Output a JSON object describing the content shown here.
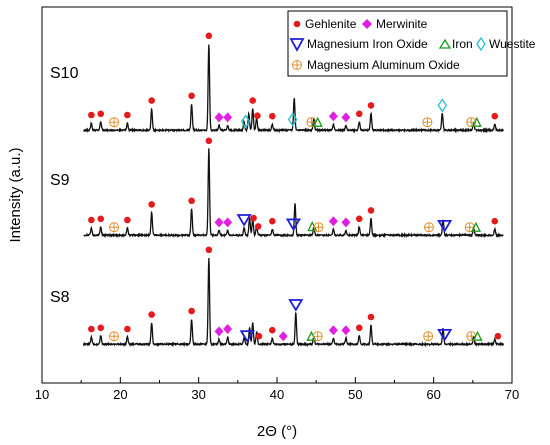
{
  "chart_data": {
    "type": "line",
    "xlabel": "2Θ (°)",
    "ylabel": "Intensity (a.u.)",
    "xlim": [
      10,
      70
    ],
    "xticks": [
      10,
      20,
      30,
      40,
      50,
      60,
      70
    ],
    "series": [
      {
        "name": "S10",
        "baseline": 0.02,
        "peaks": [
          {
            "x": 16.3,
            "h": 0.03
          },
          {
            "x": 17.5,
            "h": 0.035
          },
          {
            "x": 20.9,
            "h": 0.03
          },
          {
            "x": 24.0,
            "h": 0.09
          },
          {
            "x": 29.1,
            "h": 0.11
          },
          {
            "x": 31.3,
            "h": 0.36
          },
          {
            "x": 32.6,
            "h": 0.02
          },
          {
            "x": 33.7,
            "h": 0.02
          },
          {
            "x": 35.8,
            "h": 0.035
          },
          {
            "x": 36.4,
            "h": 0.07
          },
          {
            "x": 36.9,
            "h": 0.09
          },
          {
            "x": 37.4,
            "h": 0.05
          },
          {
            "x": 39.4,
            "h": 0.025
          },
          {
            "x": 42.2,
            "h": 0.135
          },
          {
            "x": 44.7,
            "h": 0.05
          },
          {
            "x": 47.2,
            "h": 0.025
          },
          {
            "x": 48.8,
            "h": 0.02
          },
          {
            "x": 50.5,
            "h": 0.035
          },
          {
            "x": 52.0,
            "h": 0.07
          },
          {
            "x": 61.1,
            "h": 0.07
          },
          {
            "x": 65.1,
            "h": 0.03
          },
          {
            "x": 67.8,
            "h": 0.025
          }
        ],
        "markers": [
          {
            "x": 16.3,
            "phase": "Gehlenite"
          },
          {
            "x": 17.5,
            "phase": "Gehlenite"
          },
          {
            "x": 19.2,
            "phase": "Magnesium Aluminum Oxide"
          },
          {
            "x": 20.9,
            "phase": "Gehlenite"
          },
          {
            "x": 24.0,
            "phase": "Gehlenite"
          },
          {
            "x": 29.1,
            "phase": "Gehlenite"
          },
          {
            "x": 31.3,
            "phase": "Gehlenite"
          },
          {
            "x": 32.6,
            "phase": "Merwinite"
          },
          {
            "x": 33.7,
            "phase": "Merwinite"
          },
          {
            "x": 36.0,
            "phase": "Wuestite"
          },
          {
            "x": 36.9,
            "phase": "Gehlenite"
          },
          {
            "x": 37.5,
            "phase": "Gehlenite"
          },
          {
            "x": 39.4,
            "phase": "Gehlenite"
          },
          {
            "x": 42.0,
            "phase": "Wuestite"
          },
          {
            "x": 44.4,
            "phase": "Magnesium Aluminum Oxide"
          },
          {
            "x": 45.2,
            "phase": "Iron"
          },
          {
            "x": 47.2,
            "phase": "Merwinite"
          },
          {
            "x": 48.8,
            "phase": "Merwinite"
          },
          {
            "x": 50.5,
            "phase": "Gehlenite"
          },
          {
            "x": 52.0,
            "phase": "Gehlenite"
          },
          {
            "x": 59.2,
            "phase": "Magnesium Aluminum Oxide"
          },
          {
            "x": 61.1,
            "phase": "Wuestite"
          },
          {
            "x": 64.8,
            "phase": "Magnesium Aluminum Oxide"
          },
          {
            "x": 65.5,
            "phase": "Iron"
          },
          {
            "x": 67.8,
            "phase": "Gehlenite"
          }
        ]
      },
      {
        "name": "S9",
        "baseline": 0.02,
        "peaks": [
          {
            "x": 16.3,
            "h": 0.03
          },
          {
            "x": 17.5,
            "h": 0.035
          },
          {
            "x": 20.9,
            "h": 0.03
          },
          {
            "x": 24.0,
            "h": 0.095
          },
          {
            "x": 29.1,
            "h": 0.11
          },
          {
            "x": 31.3,
            "h": 0.36
          },
          {
            "x": 32.6,
            "h": 0.02
          },
          {
            "x": 33.7,
            "h": 0.02
          },
          {
            "x": 35.8,
            "h": 0.03
          },
          {
            "x": 36.5,
            "h": 0.07
          },
          {
            "x": 36.9,
            "h": 0.07
          },
          {
            "x": 37.4,
            "h": 0.04
          },
          {
            "x": 39.4,
            "h": 0.025
          },
          {
            "x": 42.3,
            "h": 0.135
          },
          {
            "x": 44.7,
            "h": 0.035
          },
          {
            "x": 47.2,
            "h": 0.025
          },
          {
            "x": 48.8,
            "h": 0.02
          },
          {
            "x": 50.5,
            "h": 0.035
          },
          {
            "x": 52.0,
            "h": 0.07
          },
          {
            "x": 61.2,
            "h": 0.065
          },
          {
            "x": 65.1,
            "h": 0.03
          },
          {
            "x": 67.8,
            "h": 0.025
          }
        ],
        "markers": [
          {
            "x": 16.3,
            "phase": "Gehlenite"
          },
          {
            "x": 17.5,
            "phase": "Gehlenite"
          },
          {
            "x": 19.2,
            "phase": "Magnesium Aluminum Oxide"
          },
          {
            "x": 20.9,
            "phase": "Gehlenite"
          },
          {
            "x": 24.0,
            "phase": "Gehlenite"
          },
          {
            "x": 29.1,
            "phase": "Gehlenite"
          },
          {
            "x": 31.3,
            "phase": "Gehlenite"
          },
          {
            "x": 32.6,
            "phase": "Merwinite"
          },
          {
            "x": 33.7,
            "phase": "Merwinite"
          },
          {
            "x": 35.8,
            "phase": "Magnesium Iron Oxide"
          },
          {
            "x": 37.0,
            "phase": "Gehlenite"
          },
          {
            "x": 37.6,
            "phase": "Gehlenite"
          },
          {
            "x": 39.4,
            "phase": "Gehlenite"
          },
          {
            "x": 42.1,
            "phase": "Magnesium Iron Oxide"
          },
          {
            "x": 44.5,
            "phase": "Iron"
          },
          {
            "x": 45.3,
            "phase": "Magnesium Aluminum Oxide"
          },
          {
            "x": 47.2,
            "phase": "Merwinite"
          },
          {
            "x": 48.8,
            "phase": "Merwinite"
          },
          {
            "x": 50.5,
            "phase": "Gehlenite"
          },
          {
            "x": 52.0,
            "phase": "Gehlenite"
          },
          {
            "x": 59.4,
            "phase": "Magnesium Aluminum Oxide"
          },
          {
            "x": 61.4,
            "phase": "Magnesium Iron Oxide"
          },
          {
            "x": 64.6,
            "phase": "Magnesium Aluminum Oxide"
          },
          {
            "x": 65.4,
            "phase": "Iron"
          },
          {
            "x": 67.8,
            "phase": "Gehlenite"
          }
        ]
      },
      {
        "name": "S8",
        "baseline": 0.02,
        "peaks": [
          {
            "x": 16.3,
            "h": 0.03
          },
          {
            "x": 17.5,
            "h": 0.035
          },
          {
            "x": 20.9,
            "h": 0.03
          },
          {
            "x": 24.0,
            "h": 0.09
          },
          {
            "x": 29.1,
            "h": 0.105
          },
          {
            "x": 31.3,
            "h": 0.36
          },
          {
            "x": 32.6,
            "h": 0.02
          },
          {
            "x": 33.7,
            "h": 0.03
          },
          {
            "x": 35.8,
            "h": 0.03
          },
          {
            "x": 36.5,
            "h": 0.07
          },
          {
            "x": 36.9,
            "h": 0.09
          },
          {
            "x": 37.4,
            "h": 0.05
          },
          {
            "x": 39.4,
            "h": 0.025
          },
          {
            "x": 42.4,
            "h": 0.13
          },
          {
            "x": 44.7,
            "h": 0.03
          },
          {
            "x": 47.2,
            "h": 0.025
          },
          {
            "x": 48.8,
            "h": 0.025
          },
          {
            "x": 50.5,
            "h": 0.035
          },
          {
            "x": 52.0,
            "h": 0.08
          },
          {
            "x": 61.2,
            "h": 0.065
          },
          {
            "x": 65.1,
            "h": 0.03
          },
          {
            "x": 67.8,
            "h": 0.02
          }
        ],
        "markers": [
          {
            "x": 16.3,
            "phase": "Gehlenite"
          },
          {
            "x": 17.5,
            "phase": "Gehlenite"
          },
          {
            "x": 19.2,
            "phase": "Magnesium Aluminum Oxide"
          },
          {
            "x": 20.9,
            "phase": "Gehlenite"
          },
          {
            "x": 24.0,
            "phase": "Gehlenite"
          },
          {
            "x": 29.1,
            "phase": "Gehlenite"
          },
          {
            "x": 31.3,
            "phase": "Gehlenite"
          },
          {
            "x": 32.6,
            "phase": "Merwinite"
          },
          {
            "x": 33.7,
            "phase": "Merwinite"
          },
          {
            "x": 36.2,
            "phase": "Magnesium Iron Oxide"
          },
          {
            "x": 37.7,
            "phase": "Gehlenite"
          },
          {
            "x": 39.4,
            "phase": "Gehlenite"
          },
          {
            "x": 40.8,
            "phase": "Merwinite"
          },
          {
            "x": 42.4,
            "phase": "Magnesium Iron Oxide"
          },
          {
            "x": 44.4,
            "phase": "Iron"
          },
          {
            "x": 45.2,
            "phase": "Magnesium Aluminum Oxide"
          },
          {
            "x": 47.2,
            "phase": "Merwinite"
          },
          {
            "x": 48.8,
            "phase": "Merwinite"
          },
          {
            "x": 50.5,
            "phase": "Gehlenite"
          },
          {
            "x": 52.0,
            "phase": "Gehlenite"
          },
          {
            "x": 59.3,
            "phase": "Magnesium Aluminum Oxide"
          },
          {
            "x": 61.4,
            "phase": "Magnesium Iron Oxide"
          },
          {
            "x": 64.8,
            "phase": "Magnesium Aluminum Oxide"
          },
          {
            "x": 65.6,
            "phase": "Iron"
          },
          {
            "x": 68.2,
            "phase": "Gehlenite"
          }
        ]
      }
    ],
    "legend": {
      "position": "top-right",
      "entries": [
        {
          "label": "Gehlenite",
          "symbol": "circle",
          "color": "#e41a1c"
        },
        {
          "label": "Merwinite",
          "symbol": "diamond",
          "color": "#e020e0"
        },
        {
          "label": "Magnesium Iron Oxide",
          "symbol": "down-triangle",
          "color": "#1f1fd6"
        },
        {
          "label": "Iron",
          "symbol": "delta",
          "color": "#1a9a1a"
        },
        {
          "label": "Wuestite",
          "symbol": "open-diamond",
          "color": "#22c0d0"
        },
        {
          "label": "Magnesium Aluminum Oxide",
          "symbol": "circle-plus",
          "color": "#e09030"
        }
      ]
    }
  }
}
